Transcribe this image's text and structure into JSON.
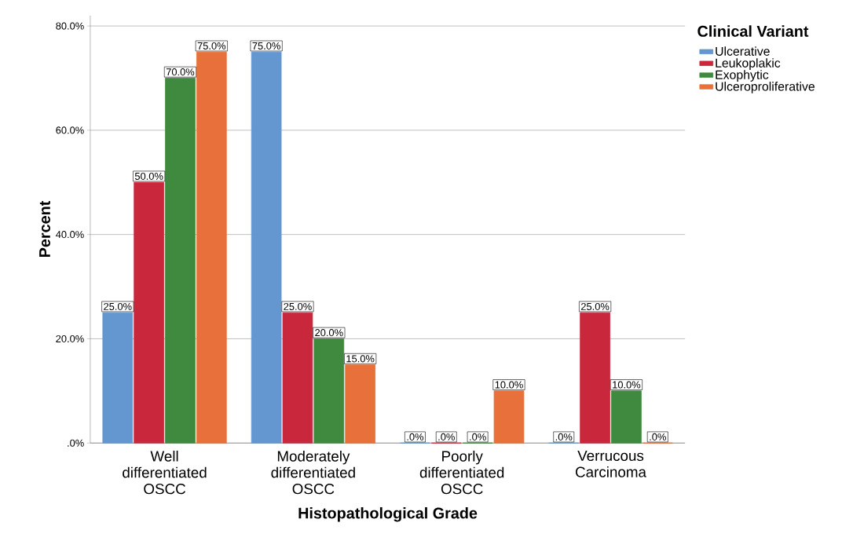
{
  "chart_data": {
    "type": "bar",
    "xlabel": "Histopathological Grade",
    "ylabel": "Percent",
    "legend_title": "Clinical Variant",
    "categories": [
      "Well differentiated OSCC",
      "Moderately differentiated OSCC",
      "Poorly differentiated OSCC",
      "Verrucous Carcinoma"
    ],
    "series": [
      {
        "name": "Ulcerative",
        "color": "#6497d0",
        "values": [
          25,
          75,
          0,
          0
        ],
        "value_labels": [
          "25.0%",
          "75.0%",
          ".0%",
          ".0%"
        ]
      },
      {
        "name": "Leukoplakic",
        "color": "#c9283c",
        "values": [
          50,
          25,
          0,
          25
        ],
        "value_labels": [
          "50.0%",
          "25.0%",
          ".0%",
          "25.0%"
        ]
      },
      {
        "name": "Exophytic",
        "color": "#3f8a3e",
        "values": [
          70,
          20,
          0,
          10
        ],
        "value_labels": [
          "70.0%",
          "20.0%",
          ".0%",
          "10.0%"
        ]
      },
      {
        "name": "Ulceroproliferative",
        "color": "#e8703a",
        "values": [
          75,
          15,
          10,
          0
        ],
        "value_labels": [
          "75.0%",
          "15.0%",
          "10.0%",
          ".0%"
        ]
      }
    ],
    "ylim": [
      0,
      82
    ],
    "yticks": [
      {
        "value": 0,
        "label": ".0%"
      },
      {
        "value": 20,
        "label": "20.0%"
      },
      {
        "value": 40,
        "label": "40.0%"
      },
      {
        "value": 60,
        "label": "60.0%"
      },
      {
        "value": 80,
        "label": "80.0%"
      }
    ],
    "grid": "y",
    "legend": "top right"
  }
}
